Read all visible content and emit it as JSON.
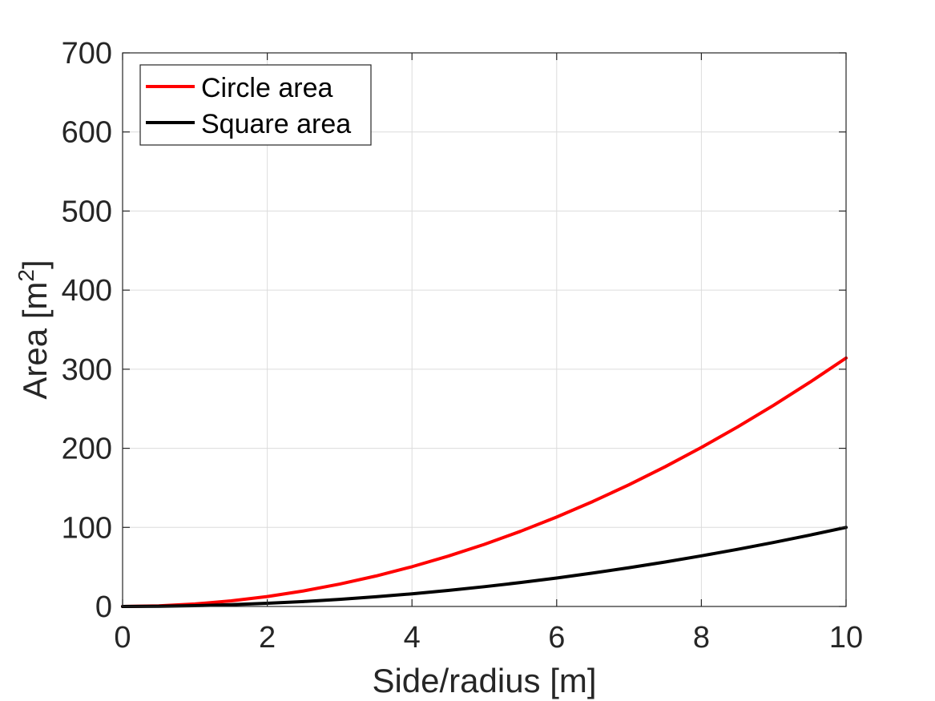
{
  "chart_data": {
    "type": "line",
    "xlabel": "Side/radius [m]",
    "ylabel": {
      "base": "Area [m",
      "superscript": "2",
      "close": "]"
    },
    "xlim": [
      0,
      10
    ],
    "ylim": [
      0,
      700
    ],
    "xticks": [
      "0",
      "2",
      "4",
      "6",
      "8",
      "10"
    ],
    "yticks": [
      "0",
      "100",
      "200",
      "300",
      "400",
      "500",
      "600",
      "700"
    ],
    "grid": true,
    "box": true,
    "legend_position": "top-left",
    "x": [
      0,
      0.5,
      1,
      1.5,
      2,
      2.5,
      3,
      3.5,
      4,
      4.5,
      5,
      5.5,
      6,
      6.5,
      7,
      7.5,
      8,
      8.5,
      9,
      9.5,
      10
    ],
    "series": [
      {
        "name": "Circle area",
        "color": "#ff0000",
        "values": [
          0,
          0.79,
          3.14,
          7.07,
          12.57,
          19.63,
          28.27,
          38.48,
          50.27,
          63.62,
          78.54,
          95.03,
          113.1,
          132.73,
          153.94,
          176.71,
          201.06,
          226.98,
          254.47,
          283.53,
          314.16
        ]
      },
      {
        "name": "Square area",
        "color": "#000000",
        "values": [
          0,
          0.25,
          1,
          2.25,
          4,
          6.25,
          9,
          12.25,
          16,
          20.25,
          25,
          30.25,
          36,
          42.25,
          49,
          56.25,
          64,
          72.25,
          81,
          90.25,
          100
        ]
      }
    ]
  }
}
